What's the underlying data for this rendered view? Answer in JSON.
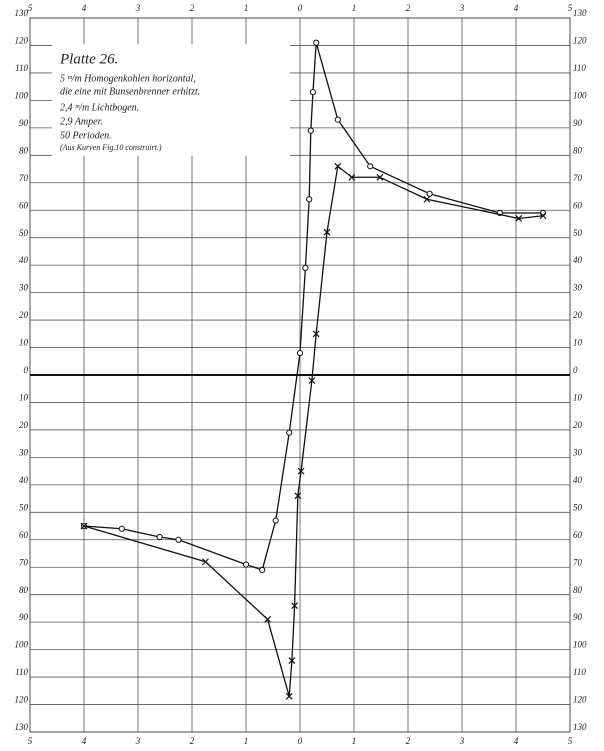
{
  "chart_data": {
    "type": "line",
    "title": "Platte 26.",
    "annotations": [
      "5 ᵐ/m Homogenkohlen horizontal,",
      "die eine mit Bunsenbrenner erhitzt.",
      "2,4 ᵐ/m Lichtbogen.",
      "2,9 Amper.",
      "50 Perioden.",
      "(Aus Kurven Fig.10 construirt.)"
    ],
    "xlim": [
      -5,
      5
    ],
    "ylim": [
      -130,
      130
    ],
    "xticks": [
      {
        "value": -5,
        "label": "5"
      },
      {
        "value": -4,
        "label": "4"
      },
      {
        "value": -3,
        "label": "3"
      },
      {
        "value": -2,
        "label": "2"
      },
      {
        "value": -1,
        "label": "1"
      },
      0,
      1,
      2,
      3,
      4,
      5
    ],
    "yticks": [
      {
        "value": -130,
        "label": "130"
      },
      {
        "value": -120,
        "label": "120"
      },
      {
        "value": -110,
        "label": "110"
      },
      {
        "value": -100,
        "label": "100"
      },
      {
        "value": -90,
        "label": "90"
      },
      {
        "value": -80,
        "label": "80"
      },
      {
        "value": -70,
        "label": "70"
      },
      {
        "value": -60,
        "label": "60"
      },
      {
        "value": -50,
        "label": "50"
      },
      {
        "value": -40,
        "label": "40"
      },
      {
        "value": -30,
        "label": "30"
      },
      {
        "value": -20,
        "label": "20"
      },
      {
        "value": -10,
        "label": "10"
      },
      0,
      10,
      20,
      30,
      40,
      50,
      60,
      70,
      80,
      90,
      100,
      110,
      120,
      130
    ],
    "grid": true,
    "series": [
      {
        "marker": "circle",
        "color": "#111111",
        "x": [
          -4.0,
          -3.3,
          -2.6,
          -2.25,
          -1.0,
          -0.7,
          -0.45,
          -0.2,
          0.0,
          0.1,
          0.17,
          0.2,
          0.24,
          0.3,
          0.7,
          1.3,
          2.4,
          3.7,
          4.5
        ],
        "values": [
          -55,
          -56,
          -59,
          -60,
          -69,
          -71,
          -53,
          -21,
          8,
          39,
          64,
          89,
          103,
          121,
          93,
          76,
          66,
          59,
          59
        ]
      },
      {
        "marker": "cross",
        "color": "#111111",
        "x": [
          -4.0,
          -1.75,
          -0.6,
          -0.2,
          -0.15,
          -0.1,
          -0.04,
          0.02,
          0.22,
          0.3,
          0.5,
          0.7,
          0.96,
          1.48,
          2.35,
          4.05,
          4.5
        ],
        "values": [
          -55,
          -68,
          -89,
          -117,
          -104,
          -84,
          -44,
          -35,
          -2,
          15,
          52,
          76,
          72,
          72,
          64,
          57,
          58
        ]
      }
    ]
  }
}
